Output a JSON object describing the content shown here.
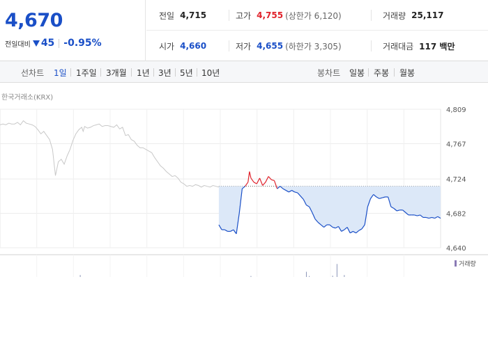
{
  "quote": {
    "price": "4,670",
    "change_label": "전일대비",
    "change_abs": "45",
    "change_pct": "-0.95%",
    "prev_close_label": "전일",
    "prev_close": "4,715",
    "open_label": "시가",
    "open": "4,660",
    "high_label": "고가",
    "high": "4,755",
    "upper_limit": "(상한가 6,120)",
    "low_label": "저가",
    "low": "4,655",
    "lower_limit": "(하한가 3,305)",
    "volume_label": "거래량",
    "volume": "25,117",
    "amount_label": "거래대금",
    "amount": "117 백만"
  },
  "tabs": {
    "line_label": "선차트",
    "line_periods": [
      "1일",
      "1주일",
      "3개월",
      "1년",
      "3년",
      "5년",
      "10년"
    ],
    "active": "1일",
    "candle_label": "봉차트",
    "candle_periods": [
      "일봉",
      "주봉",
      "월봉"
    ]
  },
  "source": "한국거래소(KRX)",
  "legend_volume": "거래량",
  "colors": {
    "up": "#e0222b",
    "down": "#1a4fc7",
    "prev_day": "#c8c8c8",
    "fill": "#dce8f8",
    "volume": "#8a7ab5"
  },
  "chart_data": {
    "type": "line",
    "ylim": [
      4640,
      4809
    ],
    "yticks": [
      "4,809",
      "4,767",
      "4,724",
      "4,682",
      "4,640"
    ],
    "grid": true,
    "reference_value": 4715,
    "series": [
      {
        "x": [
          0,
          2,
          4,
          6,
          8,
          10,
          12,
          14,
          16,
          18,
          20,
          22,
          24,
          26,
          28,
          30,
          32,
          34,
          36,
          38,
          40,
          42,
          44,
          46,
          48,
          50,
          52,
          54,
          56,
          57,
          58,
          60,
          62,
          64,
          66,
          68,
          70,
          72,
          74,
          76,
          78,
          80,
          82,
          84,
          86,
          88,
          90,
          92,
          94,
          96,
          98,
          100,
          102,
          104,
          106,
          108,
          110,
          112,
          114,
          116,
          118,
          120,
          122,
          124,
          126,
          128,
          130,
          132,
          134,
          136,
          138,
          140,
          142,
          144,
          146,
          148,
          150
        ],
        "values": [
          4790,
          4791,
          4790,
          4792,
          4791,
          4791,
          4793,
          4790,
          4795,
          4792,
          4791,
          4790,
          4788,
          4784,
          4779,
          4782,
          4777,
          4772,
          4760,
          4728,
          4745,
          4748,
          4742,
          4752,
          4760,
          4771,
          4779,
          4784,
          4787,
          4782,
          4788,
          4786,
          4787,
          4789,
          4790,
          4791,
          4788,
          4789,
          4789,
          4788,
          4787,
          4790,
          4785,
          4787,
          4777,
          4778,
          4772,
          4770,
          4765,
          4762,
          4762,
          4760,
          4758,
          4756,
          4750,
          4745,
          4740,
          4737,
          4733,
          4730,
          4727,
          4728,
          4725,
          4720,
          4718,
          4715,
          4716,
          4715,
          4717,
          4716,
          4714,
          4716,
          4715,
          4714,
          4716,
          4715,
          4714
        ]
      },
      {
        "x": [
          150,
          152,
          154,
          156,
          158,
          160,
          162,
          164,
          166,
          168,
          170,
          171,
          172,
          174,
          176,
          178,
          180,
          182,
          184,
          186,
          188,
          190,
          192,
          194,
          196,
          198,
          200,
          202,
          204,
          206,
          208,
          210,
          212,
          214,
          216,
          218,
          220,
          222,
          224,
          226,
          228,
          230,
          232,
          234,
          236,
          238,
          240,
          242,
          244,
          246,
          248,
          250,
          252,
          254,
          256,
          258,
          260,
          262,
          264,
          266,
          268,
          270,
          272,
          274,
          276,
          278,
          280,
          282,
          284,
          286,
          288,
          290,
          292,
          294,
          296,
          298,
          300,
          302
        ],
        "values": [
          4668,
          4662,
          4662,
          4660,
          4660,
          4662,
          4657,
          4682,
          4712,
          4715,
          4720,
          4733,
          4725,
          4720,
          4718,
          4725,
          4716,
          4720,
          4727,
          4723,
          4722,
          4712,
          4715,
          4712,
          4710,
          4708,
          4710,
          4708,
          4707,
          4703,
          4699,
          4692,
          4690,
          4683,
          4675,
          4671,
          4668,
          4665,
          4668,
          4668,
          4665,
          4664,
          4666,
          4660,
          4662,
          4665,
          4658,
          4660,
          4658,
          4661,
          4663,
          4668,
          4690,
          4700,
          4705,
          4702,
          4700,
          4701,
          4702,
          4702,
          4690,
          4688,
          4685,
          4686,
          4686,
          4683,
          4680,
          4680,
          4680,
          4679,
          4680,
          4677,
          4677,
          4676,
          4677,
          4676,
          4678,
          4676
        ]
      }
    ]
  },
  "volume_data": {
    "ylim": [
      0,
      30000
    ],
    "x": [
      55,
      172,
      210,
      212,
      228,
      231,
      236
    ],
    "values": [
      3000,
      1500,
      8000,
      1500,
      2000,
      20000,
      3000
    ]
  }
}
